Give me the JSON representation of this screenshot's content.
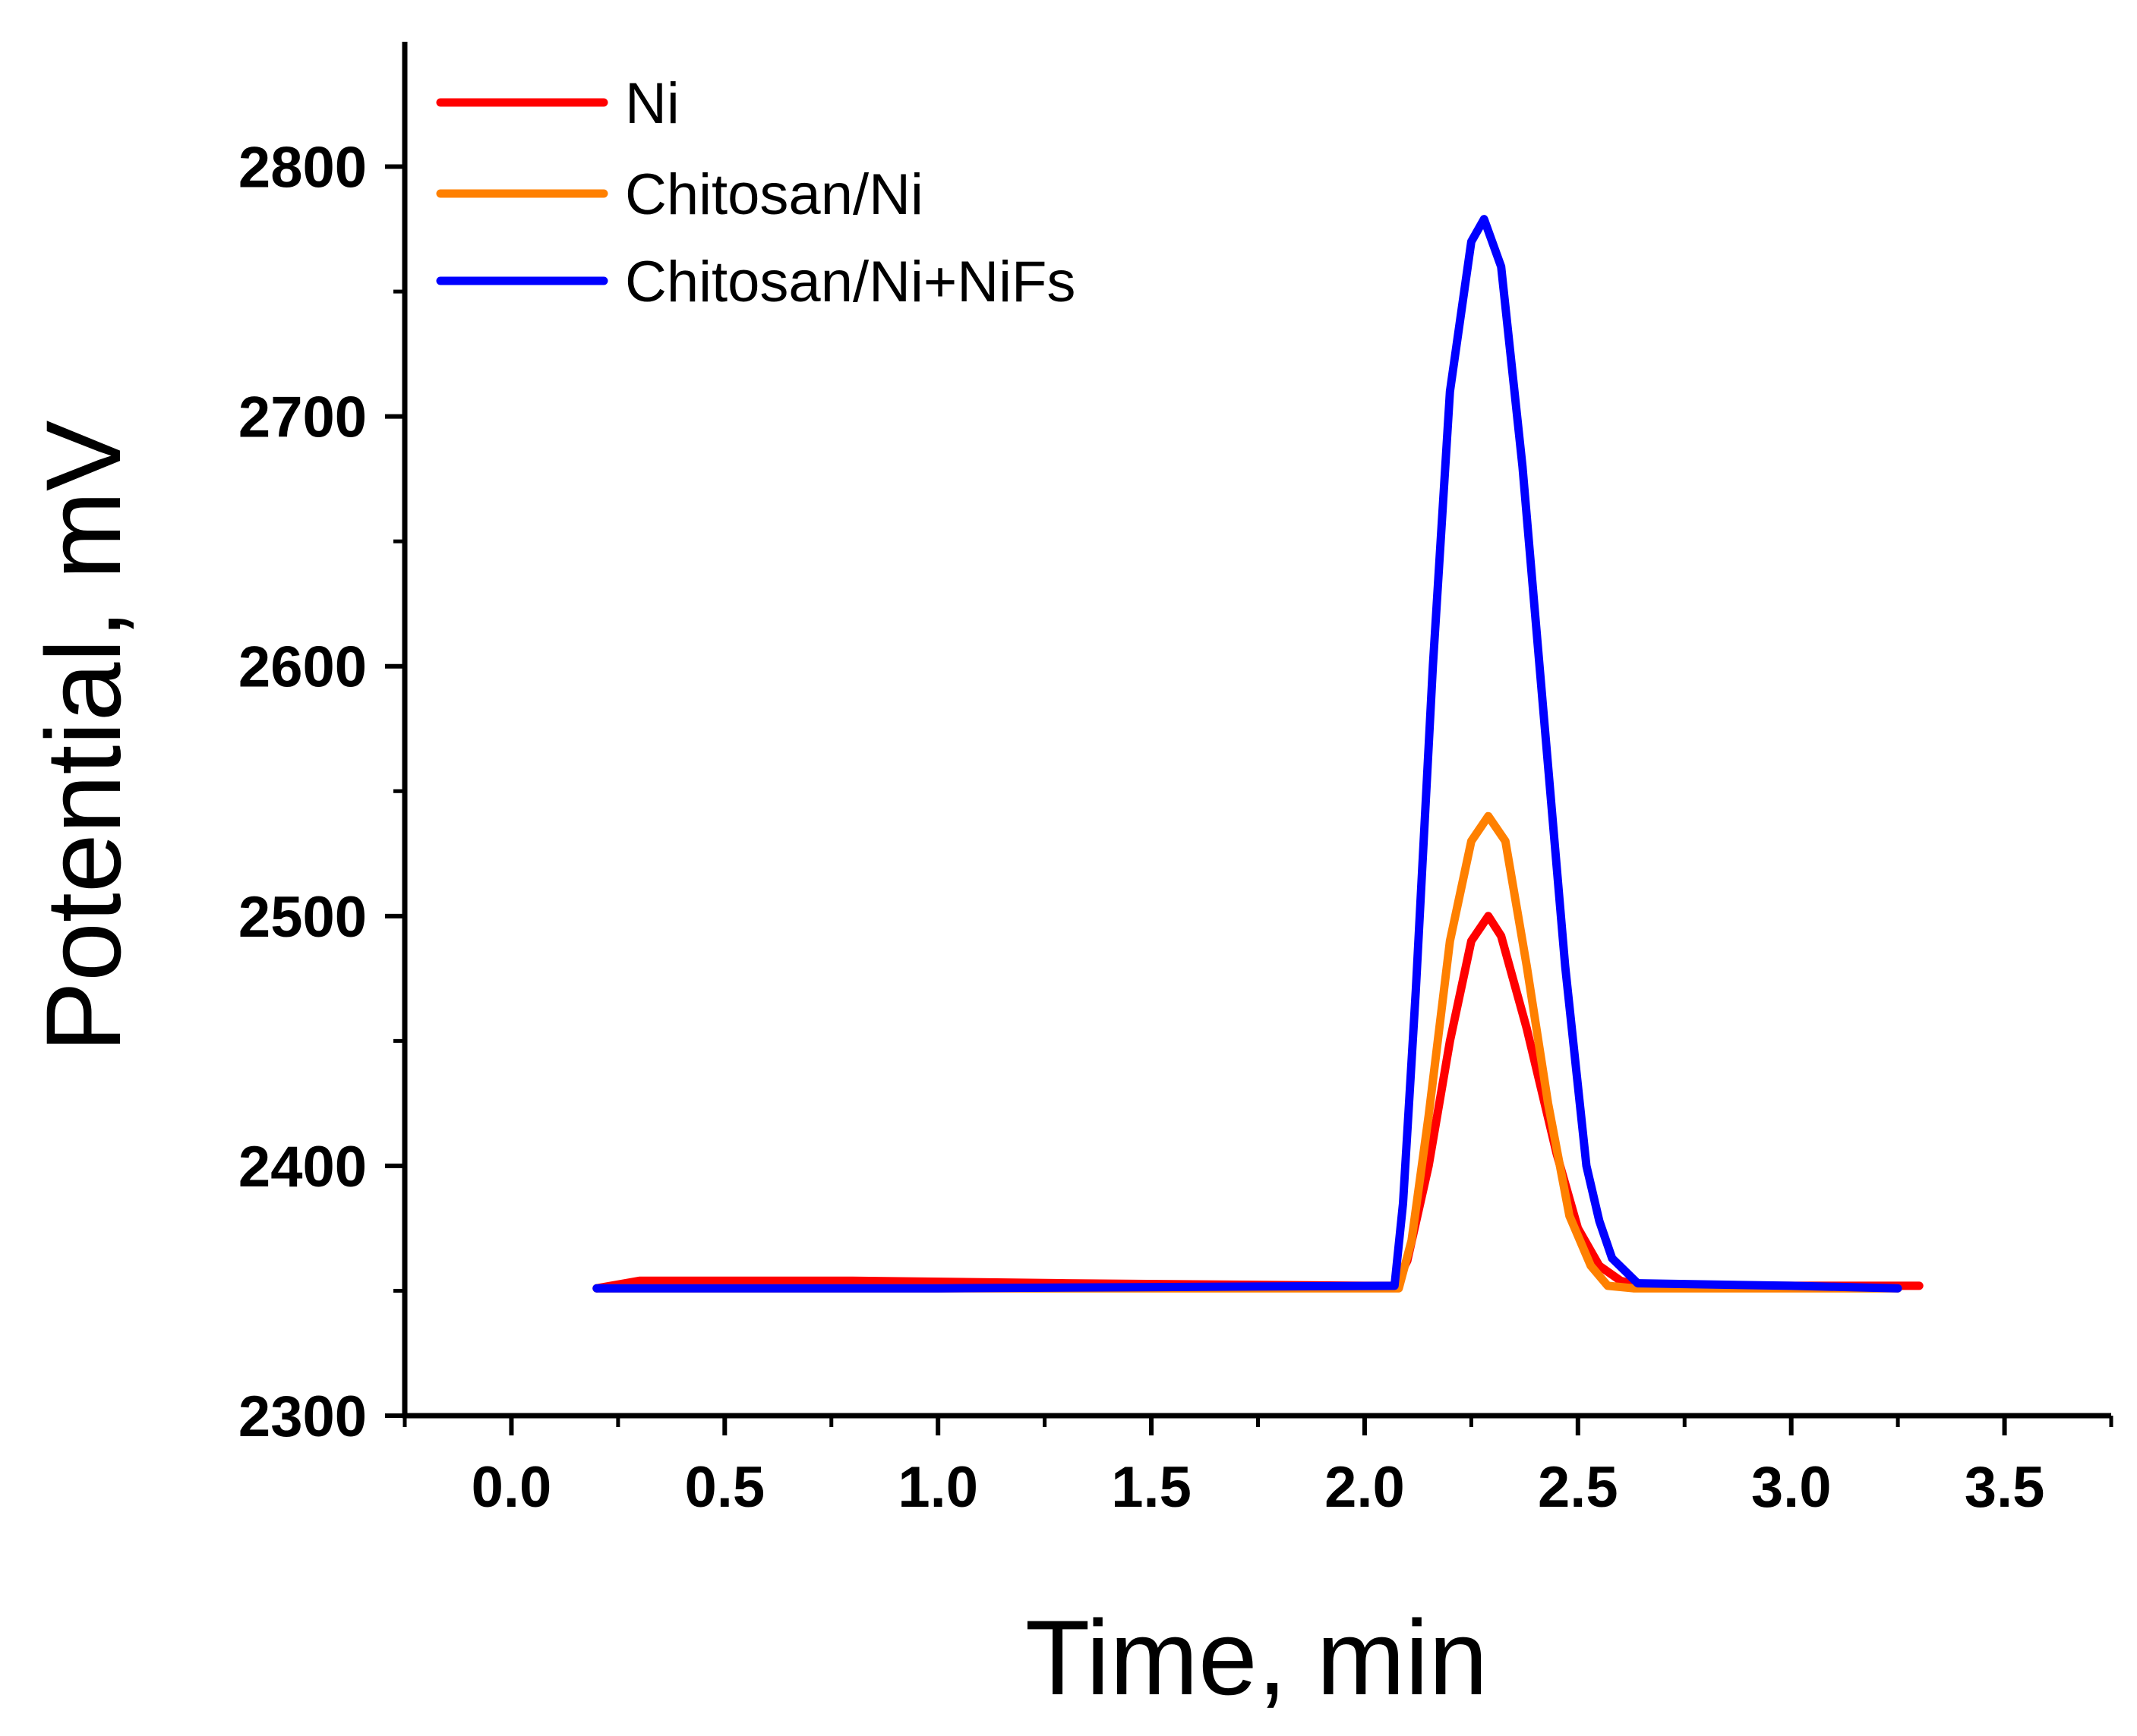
{
  "chart_data": {
    "type": "line",
    "xlabel": "Time, min",
    "ylabel": "Potential, mV",
    "xlim": [
      -0.25,
      3.75
    ],
    "ylim": [
      2300,
      2850
    ],
    "x_ticks": [
      0.0,
      0.5,
      1.0,
      1.5,
      2.0,
      2.5,
      3.0,
      3.5
    ],
    "x_tick_labels": [
      "0.0",
      "0.5",
      "1.0",
      "1.5",
      "2.0",
      "2.5",
      "3.0",
      "3.5"
    ],
    "x_minor_ticks": [
      -0.25,
      0.25,
      0.75,
      1.25,
      1.75,
      2.25,
      2.75,
      3.25,
      3.75
    ],
    "y_ticks": [
      2300,
      2400,
      2500,
      2600,
      2700,
      2800
    ],
    "y_tick_labels": [
      "2300",
      "2400",
      "2500",
      "2600",
      "2700",
      "2800"
    ],
    "y_minor_ticks": [
      2350,
      2450,
      2550,
      2650,
      2750
    ],
    "grid": false,
    "legend_position": "top-left",
    "series": [
      {
        "name": "Ni",
        "color": "#ff0000",
        "points": [
          [
            0.2,
            2351
          ],
          [
            0.3,
            2354
          ],
          [
            0.8,
            2354
          ],
          [
            1.3,
            2353
          ],
          [
            2.0,
            2352
          ],
          [
            2.07,
            2352
          ],
          [
            2.1,
            2362
          ],
          [
            2.15,
            2400
          ],
          [
            2.2,
            2450
          ],
          [
            2.25,
            2490
          ],
          [
            2.29,
            2500
          ],
          [
            2.32,
            2492
          ],
          [
            2.38,
            2455
          ],
          [
            2.45,
            2405
          ],
          [
            2.5,
            2375
          ],
          [
            2.55,
            2360
          ],
          [
            2.6,
            2354
          ],
          [
            2.65,
            2352
          ],
          [
            3.0,
            2352
          ],
          [
            3.3,
            2352
          ]
        ]
      },
      {
        "name": "Chitosan/Ni",
        "color": "#ff8000",
        "points": [
          [
            0.2,
            2351
          ],
          [
            2.08,
            2351
          ],
          [
            2.11,
            2370
          ],
          [
            2.15,
            2420
          ],
          [
            2.2,
            2490
          ],
          [
            2.25,
            2530
          ],
          [
            2.29,
            2540
          ],
          [
            2.33,
            2530
          ],
          [
            2.38,
            2480
          ],
          [
            2.43,
            2425
          ],
          [
            2.48,
            2380
          ],
          [
            2.53,
            2360
          ],
          [
            2.57,
            2352
          ],
          [
            2.63,
            2351
          ],
          [
            3.0,
            2351
          ],
          [
            3.25,
            2351
          ]
        ]
      },
      {
        "name": "Chitosan/Ni+NiFs",
        "color": "#0000ff",
        "points": [
          [
            0.2,
            2351
          ],
          [
            1.0,
            2351
          ],
          [
            2.07,
            2352
          ],
          [
            2.09,
            2385
          ],
          [
            2.12,
            2470
          ],
          [
            2.16,
            2600
          ],
          [
            2.2,
            2710
          ],
          [
            2.25,
            2770
          ],
          [
            2.28,
            2779
          ],
          [
            2.32,
            2760
          ],
          [
            2.37,
            2680
          ],
          [
            2.42,
            2580
          ],
          [
            2.47,
            2480
          ],
          [
            2.52,
            2400
          ],
          [
            2.55,
            2378
          ],
          [
            2.58,
            2363
          ],
          [
            2.64,
            2353
          ],
          [
            3.0,
            2352
          ],
          [
            3.25,
            2351
          ]
        ]
      }
    ]
  }
}
